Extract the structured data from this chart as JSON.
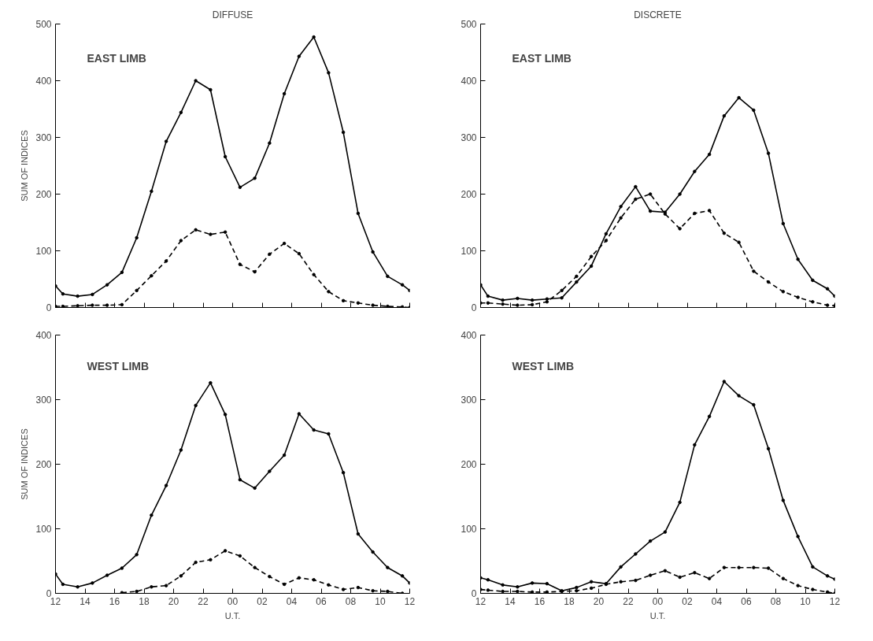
{
  "chart_data": [
    {
      "type": "line",
      "title": "DIFFUSE",
      "ylabel": "SUM OF INDICES",
      "annotations": [
        "EAST LIMB"
      ],
      "xlim": [
        12,
        36
      ],
      "ylim": [
        0,
        500
      ],
      "yticks": [
        0,
        100,
        200,
        300,
        400,
        500
      ],
      "xticks": [
        {
          "value": 12,
          "label": null
        },
        {
          "value": 14,
          "label": null
        },
        {
          "value": 16,
          "label": null
        },
        {
          "value": 18,
          "label": null
        },
        {
          "value": 20,
          "label": null
        },
        {
          "value": 22,
          "label": null
        },
        {
          "value": 24,
          "label": null
        },
        {
          "value": 26,
          "label": null
        },
        {
          "value": 28,
          "label": null
        },
        {
          "value": 30,
          "label": null
        },
        {
          "value": 32,
          "label": null
        },
        {
          "value": 34,
          "label": null
        },
        {
          "value": 36,
          "label": null
        }
      ],
      "tick_labels": "y",
      "grid": false,
      "marker": "circle",
      "x": [
        12,
        12.5,
        13.5,
        14.5,
        15.5,
        16.5,
        17.5,
        18.5,
        19.5,
        20.5,
        21.5,
        22.5,
        23.5,
        24.5,
        25.5,
        26.5,
        27.5,
        28.5,
        29.5,
        30.5,
        31.5,
        32.5,
        33.5,
        34.5,
        35.5,
        36
      ],
      "series": [
        {
          "color": "#000000",
          "line_style": "solid",
          "values": [
            38,
            24,
            20,
            23,
            40,
            62,
            123,
            205,
            293,
            344,
            400,
            384,
            266,
            212,
            228,
            290,
            377,
            443,
            477,
            414,
            309,
            166,
            98,
            55,
            40,
            30
          ]
        },
        {
          "color": "#000000",
          "line_style": "dashed",
          "values": [
            2,
            2,
            3,
            4,
            4,
            5,
            30,
            56,
            82,
            118,
            137,
            129,
            133,
            76,
            63,
            94,
            113,
            95,
            58,
            28,
            12,
            8,
            4,
            2,
            1,
            0
          ]
        }
      ]
    },
    {
      "type": "line",
      "title": "DISCRETE",
      "annotations": [
        "EAST LIMB"
      ],
      "xlim": [
        12,
        36
      ],
      "ylim": [
        0,
        500
      ],
      "yticks": [
        0,
        100,
        200,
        300,
        400,
        500
      ],
      "xticks": [
        {
          "value": 12,
          "label": null
        },
        {
          "value": 14,
          "label": null
        },
        {
          "value": 16,
          "label": null
        },
        {
          "value": 18,
          "label": null
        },
        {
          "value": 20,
          "label": null
        },
        {
          "value": 22,
          "label": null
        },
        {
          "value": 24,
          "label": null
        },
        {
          "value": 26,
          "label": null
        },
        {
          "value": 28,
          "label": null
        },
        {
          "value": 30,
          "label": null
        },
        {
          "value": 32,
          "label": null
        },
        {
          "value": 34,
          "label": null
        },
        {
          "value": 36,
          "label": null
        }
      ],
      "tick_labels": "y",
      "grid": false,
      "marker": "circle",
      "x": [
        12,
        12.5,
        13.5,
        14.5,
        15.5,
        16.5,
        17.5,
        18.5,
        19.5,
        20.5,
        21.5,
        22.5,
        23.5,
        24.5,
        25.5,
        26.5,
        27.5,
        28.5,
        29.5,
        30.5,
        31.5,
        32.5,
        33.5,
        34.5,
        35.5,
        36
      ],
      "series": [
        {
          "color": "#000000",
          "line_style": "solid",
          "values": [
            40,
            20,
            13,
            16,
            13,
            15,
            17,
            45,
            73,
            130,
            178,
            213,
            170,
            168,
            200,
            240,
            270,
            338,
            370,
            348,
            272,
            148,
            85,
            48,
            33,
            20
          ]
        },
        {
          "color": "#000000",
          "line_style": "dashed",
          "values": [
            8,
            8,
            6,
            4,
            5,
            10,
            30,
            55,
            90,
            118,
            158,
            191,
            200,
            165,
            139,
            166,
            171,
            131,
            115,
            64,
            45,
            28,
            18,
            10,
            4,
            3
          ]
        }
      ]
    },
    {
      "type": "line",
      "ylabel": "SUM OF INDICES",
      "xlabel": "U.T.",
      "annotations": [
        "WEST LIMB"
      ],
      "xlim": [
        12,
        36
      ],
      "ylim": [
        0,
        400
      ],
      "yticks": [
        0,
        100,
        200,
        300,
        400
      ],
      "xticks": [
        {
          "value": 12,
          "label": "12"
        },
        {
          "value": 14,
          "label": "14"
        },
        {
          "value": 16,
          "label": "16"
        },
        {
          "value": 18,
          "label": "18"
        },
        {
          "value": 20,
          "label": "20"
        },
        {
          "value": 22,
          "label": "22"
        },
        {
          "value": 24,
          "label": "00"
        },
        {
          "value": 26,
          "label": "02"
        },
        {
          "value": 28,
          "label": "04"
        },
        {
          "value": 30,
          "label": "06"
        },
        {
          "value": 32,
          "label": "08"
        },
        {
          "value": 34,
          "label": "10"
        },
        {
          "value": 36,
          "label": "12"
        }
      ],
      "grid": false,
      "marker": "circle",
      "x": [
        12,
        12.5,
        13.5,
        14.5,
        15.5,
        16.5,
        17.5,
        18.5,
        19.5,
        20.5,
        21.5,
        22.5,
        23.5,
        24.5,
        25.5,
        26.5,
        27.5,
        28.5,
        29.5,
        30.5,
        31.5,
        32.5,
        33.5,
        34.5,
        35.5,
        36
      ],
      "series": [
        {
          "color": "#000000",
          "line_style": "solid",
          "values": [
            30,
            14,
            10,
            16,
            28,
            39,
            60,
            121,
            167,
            222,
            291,
            326,
            277,
            176,
            163,
            189,
            214,
            278,
            253,
            247,
            187,
            92,
            64,
            40,
            27,
            16
          ]
        },
        {
          "color": "#000000",
          "line_style": "dashed",
          "x": [
            16.5,
            17.5,
            18.5,
            19.5,
            20.5,
            21.5,
            22.5,
            23.5,
            24.5,
            25.5,
            26.5,
            27.5,
            28.5,
            29.5,
            30.5,
            31.5,
            32.5,
            33.5,
            34.5,
            35.5
          ],
          "values": [
            1,
            3,
            10,
            12,
            27,
            48,
            52,
            66,
            58,
            40,
            26,
            14,
            24,
            21,
            13,
            6,
            9,
            4,
            3,
            0
          ]
        }
      ]
    },
    {
      "type": "line",
      "xlabel": "U.T.",
      "annotations": [
        "WEST LIMB"
      ],
      "xlim": [
        12,
        36
      ],
      "ylim": [
        0,
        400
      ],
      "yticks": [
        0,
        100,
        200,
        300,
        400
      ],
      "xticks": [
        {
          "value": 12,
          "label": "12"
        },
        {
          "value": 14,
          "label": "14"
        },
        {
          "value": 16,
          "label": "16"
        },
        {
          "value": 18,
          "label": "18"
        },
        {
          "value": 20,
          "label": "20"
        },
        {
          "value": 22,
          "label": "22"
        },
        {
          "value": 24,
          "label": "00"
        },
        {
          "value": 26,
          "label": "02"
        },
        {
          "value": 28,
          "label": "04"
        },
        {
          "value": 30,
          "label": "06"
        },
        {
          "value": 32,
          "label": "08"
        },
        {
          "value": 34,
          "label": "10"
        },
        {
          "value": 36,
          "label": "12"
        }
      ],
      "grid": false,
      "marker": "circle",
      "x": [
        12,
        12.5,
        13.5,
        14.5,
        15.5,
        16.5,
        17.5,
        18.5,
        19.5,
        20.5,
        21.5,
        22.5,
        23.5,
        24.5,
        25.5,
        26.5,
        27.5,
        28.5,
        29.5,
        30.5,
        31.5,
        32.5,
        33.5,
        34.5,
        35.5,
        36
      ],
      "series": [
        {
          "color": "#000000",
          "line_style": "solid",
          "values": [
            24,
            21,
            13,
            10,
            16,
            15,
            4,
            9,
            18,
            15,
            41,
            61,
            81,
            95,
            141,
            230,
            274,
            328,
            306,
            292,
            224,
            144,
            88,
            41,
            27,
            22
          ]
        },
        {
          "color": "#000000",
          "line_style": "dashed",
          "values": [
            6,
            5,
            3,
            3,
            2,
            2,
            3,
            4,
            8,
            14,
            18,
            20,
            28,
            35,
            25,
            32,
            23,
            40,
            40,
            40,
            39,
            23,
            12,
            6,
            2,
            0
          ]
        }
      ]
    }
  ]
}
